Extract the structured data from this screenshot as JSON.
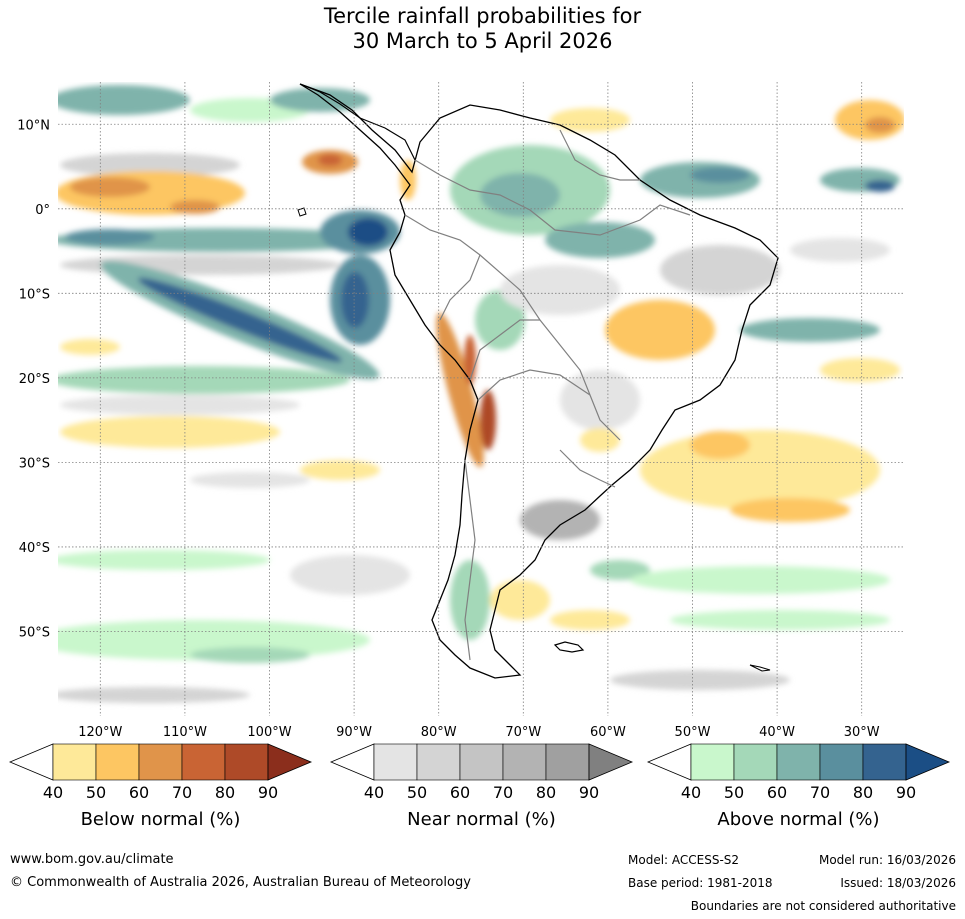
{
  "title": {
    "line1": "Tercile rainfall probabilities for",
    "line2": "30 March to 5 April 2026"
  },
  "map": {
    "lat_labels": [
      "10°N",
      "0°",
      "10°S",
      "20°S",
      "30°S",
      "40°S",
      "50°S"
    ],
    "lon_labels": [
      "120°W",
      "110°W",
      "100°W",
      "90°W",
      "80°W",
      "70°W",
      "60°W",
      "50°W",
      "40°W",
      "30°W"
    ]
  },
  "colorbars": [
    {
      "title": "Below normal (%)",
      "ticks": [
        "40",
        "50",
        "60",
        "70",
        "80",
        "90"
      ],
      "colors": [
        "#ffffff",
        "#fee999",
        "#fdc662",
        "#e0944a",
        "#c96434",
        "#ae4a28",
        "#8b2e1c"
      ]
    },
    {
      "title": "Near normal (%)",
      "ticks": [
        "40",
        "50",
        "60",
        "70",
        "80",
        "90"
      ],
      "colors": [
        "#ffffff",
        "#e4e4e4",
        "#d4d4d4",
        "#c4c4c4",
        "#b3b3b3",
        "#a0a0a0",
        "#808080"
      ]
    },
    {
      "title": "Above normal (%)",
      "ticks": [
        "40",
        "50",
        "60",
        "70",
        "80",
        "90"
      ],
      "colors": [
        "#ffffff",
        "#c9f7cc",
        "#a4d8b8",
        "#7fb3ab",
        "#5a8f9e",
        "#34638f",
        "#1b4e85"
      ]
    }
  ],
  "footer": {
    "url": "www.bom.gov.au/climate",
    "copyright": "© Commonwealth of Australia 2026, Australian Bureau of Meteorology",
    "model": "Model: ACCESS-S2",
    "base_period": "Base period: 1981-2018",
    "model_run": "Model run: 16/03/2026",
    "issued": "Issued: 18/03/2026",
    "boundaries_note": "Boundaries are not considered authoritative"
  }
}
